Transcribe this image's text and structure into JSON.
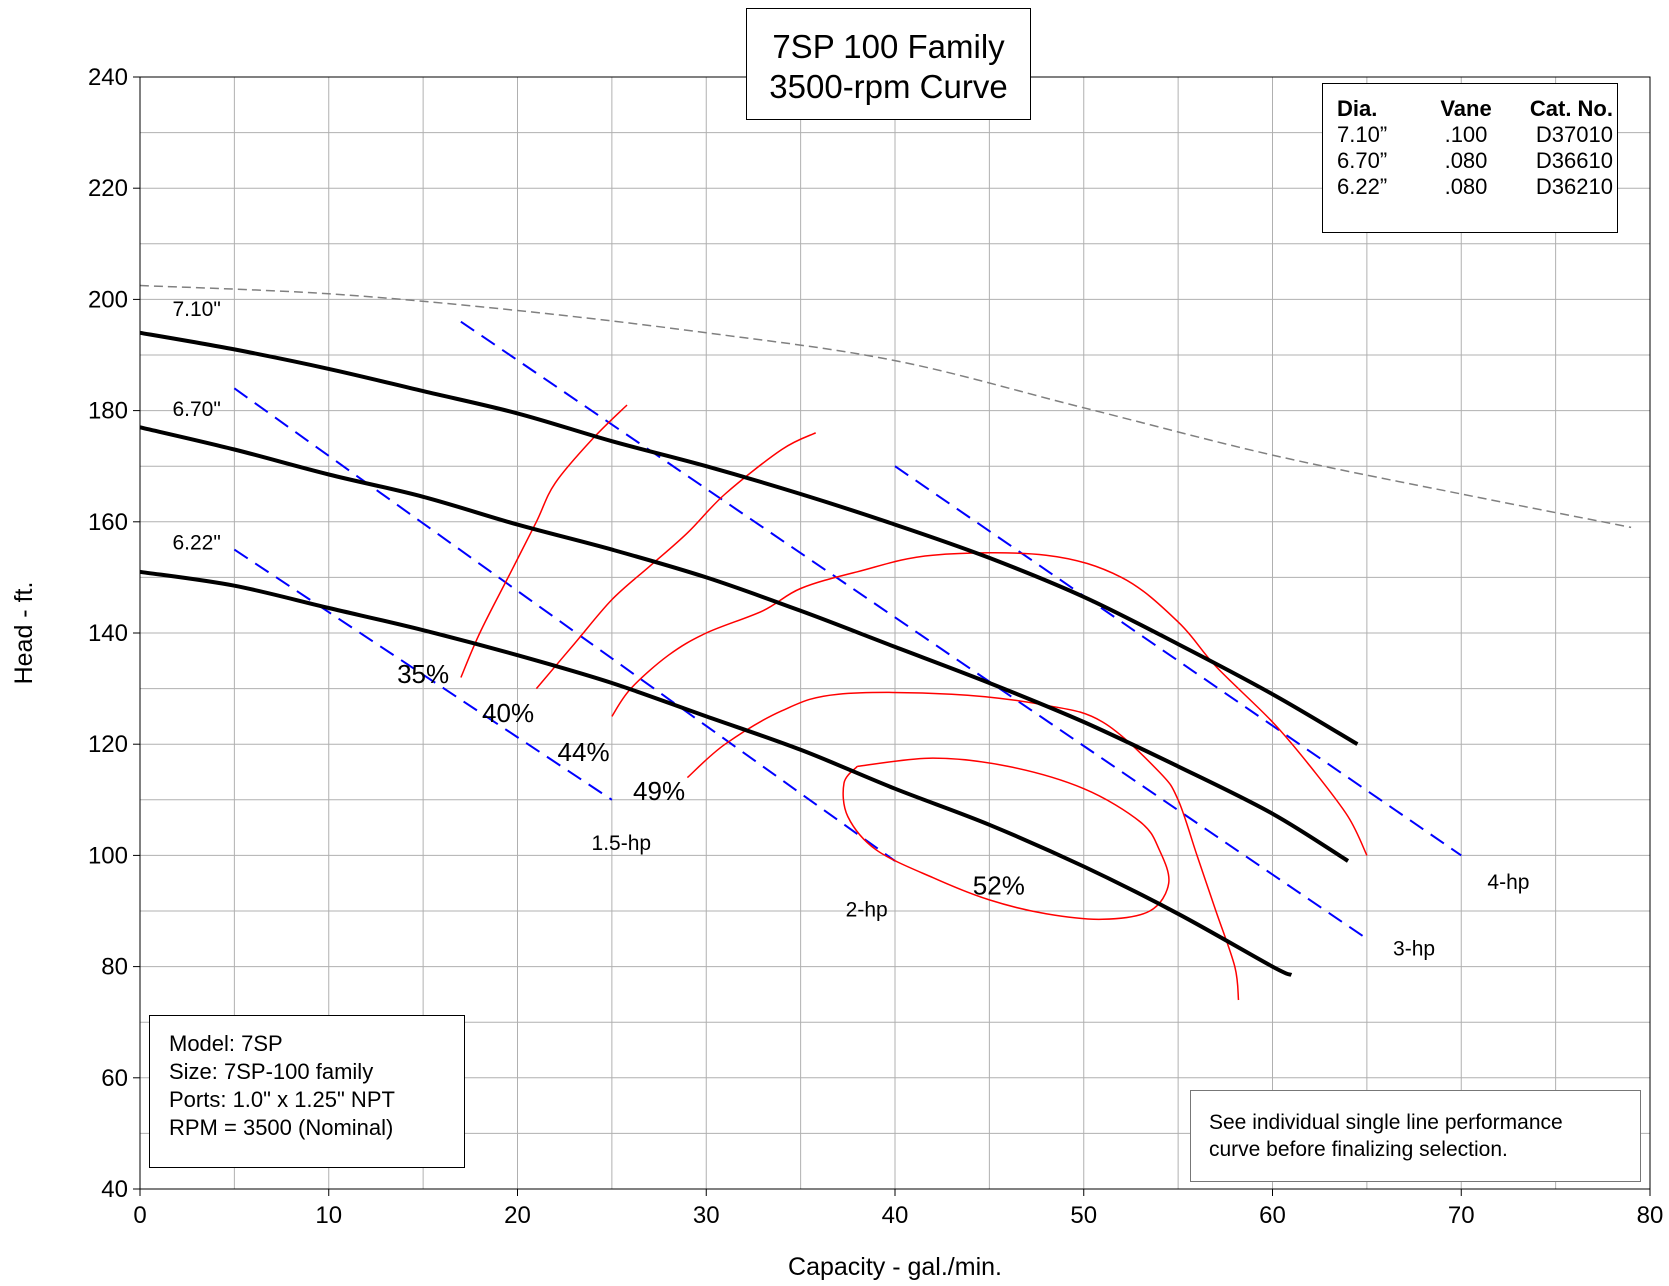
{
  "title": [
    "7SP 100 Family",
    "3500-rpm Curve"
  ],
  "impeller_table": {
    "headers": [
      "Dia.",
      "Vane",
      "Cat. No."
    ],
    "rows": [
      [
        "7.10”",
        ".100",
        "D37010"
      ],
      [
        "6.70”",
        ".080",
        "D36610"
      ],
      [
        "6.22”",
        ".080",
        "D36210"
      ]
    ]
  },
  "model_info": [
    "Model: 7SP",
    "Size: 7SP-100 family",
    "Ports: 1.0\" x 1.25\" NPT",
    "RPM = 3500 (Nominal)"
  ],
  "note": [
    "See individual single line performance",
    "curve before finalizing selection."
  ],
  "colors": {
    "head_curve": "#000000",
    "hp_line": "#0000ff",
    "efficiency": "#ff0000",
    "dashed_limit": "#808080",
    "grid": "#b0b0b0"
  },
  "chart_data": {
    "type": "line",
    "xlabel": "Capacity - gal./min.",
    "ylabel": "Head - ft.",
    "xlim": [
      0,
      80
    ],
    "ylim": [
      40,
      240
    ],
    "x_ticks": [
      0,
      10,
      20,
      30,
      40,
      50,
      60,
      70,
      80
    ],
    "y_ticks": [
      40,
      60,
      80,
      100,
      120,
      140,
      160,
      180,
      200,
      220,
      240
    ],
    "grid": true,
    "x_grid_step": 5,
    "y_grid_step": 10,
    "head_curves": [
      {
        "name": "7.10\"",
        "label_at": [
          3,
          197
        ],
        "points": [
          [
            0,
            194
          ],
          [
            5,
            191
          ],
          [
            10,
            187.5
          ],
          [
            15,
            183.5
          ],
          [
            20,
            179.5
          ],
          [
            25,
            174.5
          ],
          [
            30,
            170
          ],
          [
            35,
            165
          ],
          [
            40,
            159.5
          ],
          [
            45,
            153.5
          ],
          [
            50,
            146.5
          ],
          [
            55,
            138
          ],
          [
            60,
            129
          ],
          [
            64.5,
            120
          ]
        ]
      },
      {
        "name": "6.70\"",
        "label_at": [
          3,
          179
        ],
        "points": [
          [
            0,
            177
          ],
          [
            5,
            173
          ],
          [
            10,
            168.5
          ],
          [
            15,
            164.5
          ],
          [
            20,
            159.5
          ],
          [
            25,
            155
          ],
          [
            30,
            150
          ],
          [
            35,
            144
          ],
          [
            40,
            137.5
          ],
          [
            45,
            131
          ],
          [
            50,
            124
          ],
          [
            55,
            116
          ],
          [
            60,
            107.5
          ],
          [
            64,
            99
          ]
        ]
      },
      {
        "name": "6.22\"",
        "label_at": [
          3,
          155
        ],
        "points": [
          [
            0,
            151
          ],
          [
            5,
            148.5
          ],
          [
            10,
            144.5
          ],
          [
            15,
            140.5
          ],
          [
            20,
            136
          ],
          [
            25,
            131
          ],
          [
            30,
            125
          ],
          [
            35,
            119
          ],
          [
            40,
            112
          ],
          [
            45,
            105.5
          ],
          [
            50,
            98
          ],
          [
            55,
            89.5
          ],
          [
            60,
            80
          ],
          [
            61,
            78.5
          ]
        ]
      }
    ],
    "hp_lines": [
      {
        "name": "1.5-hp",
        "from": [
          5,
          155
        ],
        "to": [
          25,
          110
        ],
        "label_at": [
          25.5,
          101
        ]
      },
      {
        "name": "2-hp",
        "from": [
          5,
          184
        ],
        "to": [
          40,
          99
        ],
        "label_at": [
          38.5,
          89
        ]
      },
      {
        "name": "3-hp",
        "from": [
          17,
          196
        ],
        "to": [
          65,
          85
        ],
        "label_at": [
          67.5,
          82
        ]
      },
      {
        "name": "4-hp",
        "from": [
          40,
          170
        ],
        "to": [
          70,
          100
        ],
        "label_at": [
          72.5,
          94
        ]
      }
    ],
    "efficiency_curves": [
      {
        "name": "35%",
        "label_at": [
          15,
          131
        ],
        "points": [
          [
            17,
            132
          ],
          [
            18,
            140
          ],
          [
            19.5,
            150
          ],
          [
            21,
            160
          ],
          [
            22,
            167
          ],
          [
            24,
            175
          ],
          [
            25.8,
            181
          ]
        ]
      },
      {
        "name": "40%",
        "label_at": [
          19.5,
          124
        ],
        "points": [
          [
            21,
            130
          ],
          [
            23,
            138
          ],
          [
            25,
            146
          ],
          [
            27,
            152
          ],
          [
            29,
            158
          ],
          [
            31,
            165
          ],
          [
            34,
            173
          ],
          [
            35.8,
            176
          ]
        ]
      },
      {
        "name": "44%",
        "label_at": [
          23.5,
          117
        ],
        "points": [
          [
            25,
            125
          ],
          [
            26,
            130
          ],
          [
            28,
            136
          ],
          [
            30,
            140
          ],
          [
            33,
            144
          ],
          [
            35,
            148
          ],
          [
            38,
            151
          ],
          [
            42,
            154
          ],
          [
            48,
            154
          ],
          [
            52,
            150
          ],
          [
            55,
            142
          ],
          [
            57,
            134
          ],
          [
            60,
            124
          ],
          [
            62,
            116
          ],
          [
            64,
            107
          ],
          [
            65,
            100
          ]
        ]
      },
      {
        "name": "49%",
        "label_at": [
          27.5,
          110
        ],
        "points": [
          [
            29,
            114
          ],
          [
            31,
            120
          ],
          [
            34,
            126
          ],
          [
            37,
            129
          ],
          [
            43,
            129
          ],
          [
            48,
            127
          ],
          [
            51,
            124
          ],
          [
            54,
            115
          ],
          [
            55,
            110
          ],
          [
            56,
            100
          ],
          [
            57,
            90
          ],
          [
            58,
            80
          ],
          [
            58.2,
            74
          ]
        ]
      },
      {
        "name": "52%",
        "label_at": [
          45.5,
          93
        ],
        "points": [
          [
            38,
            116
          ],
          [
            42,
            117.5
          ],
          [
            46,
            116
          ],
          [
            50,
            112
          ],
          [
            53,
            106
          ],
          [
            54,
            101
          ],
          [
            54.5,
            95
          ],
          [
            53.5,
            90
          ],
          [
            51,
            88.5
          ],
          [
            48,
            89.5
          ],
          [
            45,
            92
          ],
          [
            42,
            96
          ],
          [
            39,
            101
          ],
          [
            37.5,
            107
          ],
          [
            37.3,
            113
          ],
          [
            38,
            116
          ]
        ]
      }
    ],
    "dashed_limit": {
      "points": [
        [
          0,
          202.5
        ],
        [
          10,
          201
        ],
        [
          20,
          198
        ],
        [
          30,
          194
        ],
        [
          40,
          189
        ],
        [
          50,
          180.5
        ],
        [
          60,
          172
        ],
        [
          70,
          165
        ],
        [
          79,
          159
        ]
      ]
    }
  }
}
